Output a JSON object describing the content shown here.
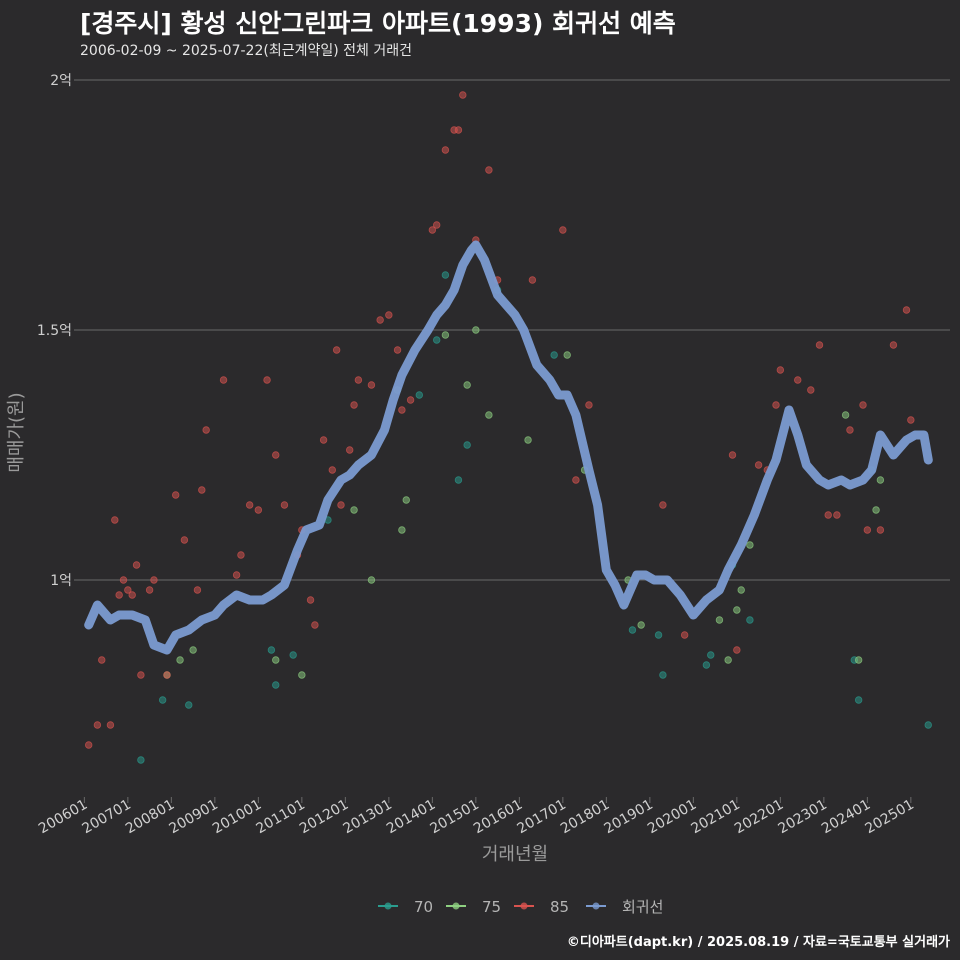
{
  "title": "[경주시] 황성 신안그린파크 아파트(1993) 회귀선 예측",
  "subtitle": "2006-02-09 ~ 2025-07-22(최근계약일) 전체 거래건",
  "caption": "©디아파트(dapt.kr) / 2025.08.19 / 자료=국토교통부 실거래가",
  "colors": {
    "background": "#2b2a2c",
    "grid": "#6a6a6a",
    "s70": "#2a9d8f",
    "s75": "#8ed081",
    "s85": "#d9534f",
    "regression": "#7b9bd1"
  },
  "chart_data": {
    "type": "scatter",
    "title": "[경주시] 황성 신안그린파크 아파트(1993) 회귀선 예측",
    "xlabel": "거래년월",
    "ylabel": "매매가(원)",
    "xlim": [
      2005.9,
      2025.9
    ],
    "ylim": [
      0.57,
      2.02
    ],
    "yticks": [
      {
        "value": 1.0,
        "label": "1억"
      },
      {
        "value": 1.5,
        "label": "1.5억"
      },
      {
        "value": 2.0,
        "label": "2억"
      }
    ],
    "xticks": [
      "200601",
      "200701",
      "200801",
      "200901",
      "201001",
      "201101",
      "201201",
      "201301",
      "201401",
      "201501",
      "201601",
      "201701",
      "201801",
      "201901",
      "202001",
      "202101",
      "202201",
      "202301",
      "202401",
      "202501"
    ],
    "legend": [
      "70",
      "75",
      "85",
      "회귀선"
    ],
    "series": [
      {
        "name": "70",
        "x": [
          2007.3,
          2007.8,
          2008.4,
          2010.3,
          2010.4,
          2010.8,
          2011.6,
          2013.7,
          2014.1,
          2014.3,
          2014.6,
          2014.8,
          2015.5,
          2016.8,
          2018.6,
          2019.2,
          2019.3,
          2020.3,
          2020.4,
          2020.9,
          2021.3,
          2023.7,
          2023.8,
          2024.1,
          2025.4
        ],
        "y": [
          0.64,
          0.76,
          0.75,
          0.86,
          0.79,
          0.85,
          1.12,
          1.37,
          1.48,
          1.61,
          1.2,
          1.27,
          1.58,
          1.45,
          0.9,
          0.89,
          0.81,
          0.83,
          0.85,
          1.03,
          0.92,
          0.84,
          0.76,
          1.22,
          0.71
        ]
      },
      {
        "name": "75",
        "x": [
          2007.9,
          2008.2,
          2008.5,
          2010.4,
          2011.0,
          2012.2,
          2012.6,
          2013.2,
          2013.3,
          2013.4,
          2014.3,
          2014.8,
          2015.0,
          2015.3,
          2016.2,
          2017.1,
          2017.5,
          2018.5,
          2018.8,
          2020.6,
          2020.8,
          2021.0,
          2021.1,
          2021.3,
          2023.5,
          2023.8,
          2024.2,
          2024.3
        ],
        "y": [
          0.81,
          0.84,
          0.86,
          0.84,
          0.81,
          1.14,
          1.0,
          1.38,
          1.1,
          1.16,
          1.49,
          1.39,
          1.5,
          1.33,
          1.28,
          1.45,
          1.22,
          1.0,
          0.91,
          0.92,
          0.84,
          0.94,
          0.98,
          1.07,
          1.33,
          0.84,
          1.14,
          1.2
        ]
      },
      {
        "name": "85",
        "x": [
          2006.1,
          2006.3,
          2006.4,
          2006.6,
          2006.7,
          2006.8,
          2006.9,
          2007.0,
          2007.1,
          2007.2,
          2007.3,
          2007.5,
          2007.6,
          2007.9,
          2008.1,
          2008.3,
          2008.6,
          2008.7,
          2008.8,
          2009.2,
          2009.5,
          2009.6,
          2009.8,
          2010.0,
          2010.2,
          2010.4,
          2010.6,
          2010.9,
          2011.0,
          2011.2,
          2011.3,
          2011.5,
          2011.7,
          2011.8,
          2011.9,
          2012.1,
          2012.2,
          2012.3,
          2012.6,
          2012.8,
          2013.0,
          2013.2,
          2013.3,
          2013.5,
          2014.0,
          2014.1,
          2014.3,
          2014.5,
          2014.6,
          2014.7,
          2015.0,
          2015.3,
          2015.5,
          2016.3,
          2017.0,
          2017.3,
          2017.6,
          2019.3,
          2019.8,
          2020.9,
          2021.0,
          2021.5,
          2021.7,
          2021.9,
          2022.0,
          2022.4,
          2022.7,
          2022.9,
          2023.1,
          2023.3,
          2023.6,
          2023.9,
          2024.0,
          2024.3,
          2024.6,
          2024.9,
          2025.0
        ],
        "y": [
          0.67,
          0.71,
          0.84,
          0.71,
          1.12,
          0.97,
          1.0,
          0.98,
          0.97,
          1.03,
          0.81,
          0.98,
          1.0,
          0.81,
          1.17,
          1.08,
          0.98,
          1.18,
          1.3,
          1.4,
          1.01,
          1.05,
          1.15,
          1.14,
          1.4,
          1.25,
          1.15,
          1.05,
          1.1,
          0.96,
          0.91,
          1.28,
          1.22,
          1.46,
          1.15,
          1.26,
          1.35,
          1.4,
          1.39,
          1.52,
          1.53,
          1.46,
          1.34,
          1.36,
          1.7,
          1.71,
          1.86,
          1.9,
          1.9,
          1.97,
          1.68,
          1.82,
          1.6,
          1.6,
          1.7,
          1.2,
          1.35,
          1.15,
          0.89,
          1.25,
          0.86,
          1.23,
          1.22,
          1.35,
          1.42,
          1.4,
          1.38,
          1.47,
          1.13,
          1.13,
          1.3,
          1.35,
          1.1,
          1.1,
          1.47,
          1.54,
          1.32
        ]
      },
      {
        "name": "회귀선",
        "x": [
          2006.1,
          2006.3,
          2006.6,
          2006.8,
          2007.1,
          2007.4,
          2007.6,
          2007.9,
          2008.1,
          2008.4,
          2008.7,
          2009.0,
          2009.2,
          2009.5,
          2009.8,
          2010.1,
          2010.3,
          2010.6,
          2010.9,
          2011.1,
          2011.4,
          2011.6,
          2011.9,
          2012.1,
          2012.3,
          2012.6,
          2012.9,
          2013.1,
          2013.3,
          2013.6,
          2013.9,
          2014.1,
          2014.3,
          2014.5,
          2014.7,
          2014.9,
          2015.0,
          2015.2,
          2015.5,
          2015.7,
          2015.9,
          2016.1,
          2016.4,
          2016.7,
          2016.9,
          2017.1,
          2017.3,
          2017.6,
          2017.8,
          2018.0,
          2018.2,
          2018.4,
          2018.7,
          2018.9,
          2019.1,
          2019.4,
          2019.7,
          2020.0,
          2020.3,
          2020.6,
          2020.8,
          2021.1,
          2021.4,
          2021.7,
          2021.9,
          2022.2,
          2022.4,
          2022.6,
          2022.9,
          2023.1,
          2023.4,
          2023.6,
          2023.9,
          2024.1,
          2024.3,
          2024.6,
          2024.9,
          2025.1,
          2025.3,
          2025.4
        ],
        "y": [
          0.91,
          0.95,
          0.92,
          0.93,
          0.93,
          0.92,
          0.87,
          0.86,
          0.89,
          0.9,
          0.92,
          0.93,
          0.95,
          0.97,
          0.96,
          0.96,
          0.97,
          0.99,
          1.06,
          1.1,
          1.11,
          1.16,
          1.2,
          1.21,
          1.23,
          1.25,
          1.3,
          1.36,
          1.41,
          1.46,
          1.5,
          1.53,
          1.55,
          1.58,
          1.63,
          1.66,
          1.67,
          1.64,
          1.57,
          1.55,
          1.53,
          1.5,
          1.43,
          1.4,
          1.37,
          1.37,
          1.33,
          1.22,
          1.15,
          1.02,
          0.99,
          0.95,
          1.01,
          1.01,
          1.0,
          1.0,
          0.97,
          0.93,
          0.96,
          0.98,
          1.02,
          1.07,
          1.13,
          1.2,
          1.24,
          1.34,
          1.29,
          1.23,
          1.2,
          1.19,
          1.2,
          1.19,
          1.2,
          1.22,
          1.29,
          1.25,
          1.28,
          1.29,
          1.29,
          1.24
        ]
      }
    ]
  }
}
